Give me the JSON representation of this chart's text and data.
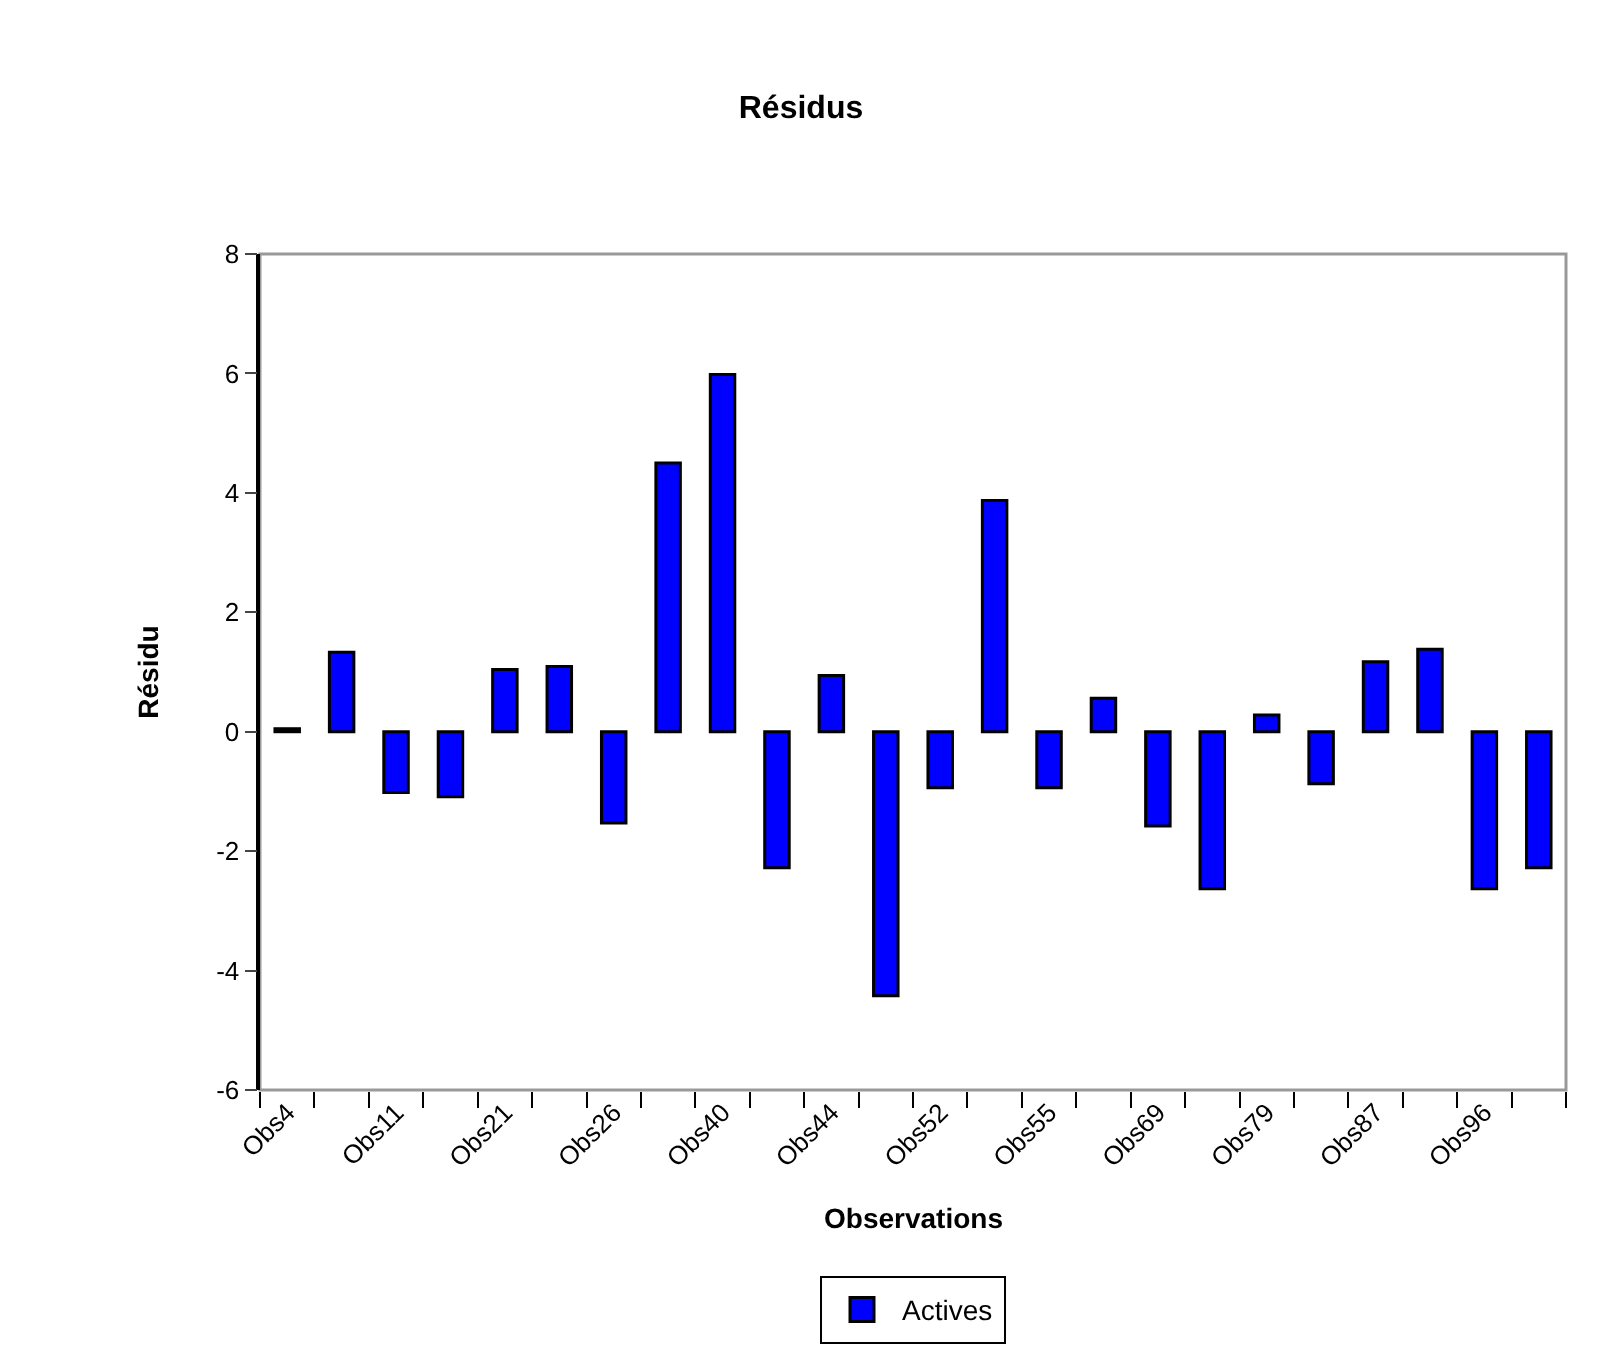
{
  "chart_data": {
    "type": "bar",
    "title": "Résidus",
    "xlabel": "Observations",
    "ylabel": "Résidu",
    "categories": [
      "Obs4",
      null,
      "Obs11",
      null,
      "Obs21",
      null,
      "Obs26",
      null,
      "Obs40",
      null,
      "Obs44",
      null,
      "Obs52",
      null,
      "Obs55",
      null,
      "Obs69",
      null,
      "Obs79",
      null,
      "Obs87",
      null,
      "Obs96",
      null
    ],
    "series": [
      {
        "name": "Actives",
        "color": "#0000ff",
        "values": [
          0.05,
          1.33,
          -1.02,
          -1.09,
          1.04,
          1.09,
          -1.53,
          4.5,
          5.98,
          -2.28,
          0.94,
          -4.42,
          -0.94,
          3.87,
          -0.94,
          0.56,
          -1.58,
          -2.63,
          0.28,
          -0.87,
          1.17,
          1.38,
          -2.63,
          -2.28
        ]
      }
    ],
    "ylim": [
      -6,
      8
    ],
    "yticks": [
      -6,
      -4,
      -2,
      0,
      2,
      4,
      6,
      8
    ],
    "grid": false,
    "legend": "bottom"
  }
}
